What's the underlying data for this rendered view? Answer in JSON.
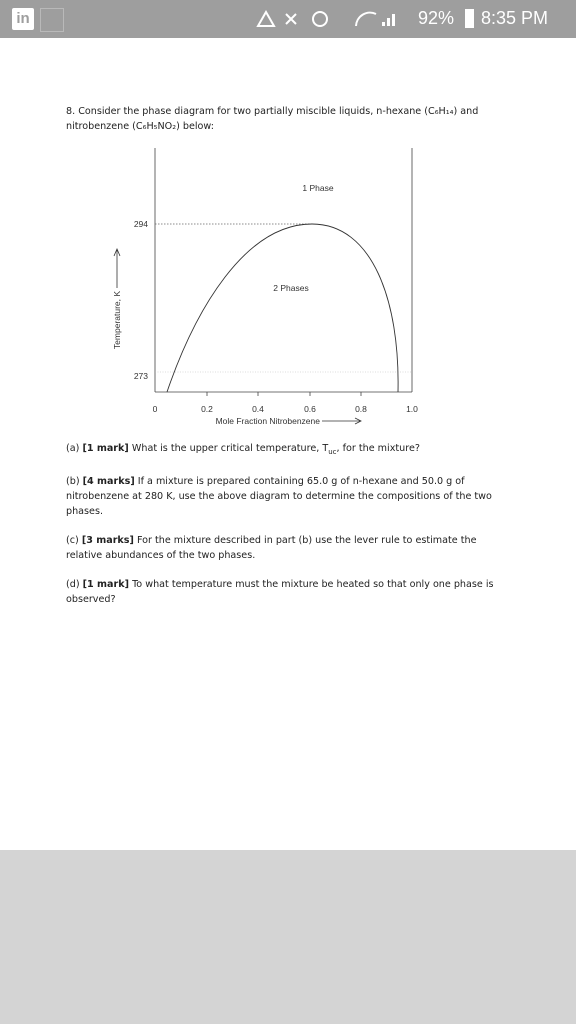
{
  "status_bar": {
    "app": "in",
    "battery": "92%",
    "time": "8:35 PM"
  },
  "question": {
    "number": "8.",
    "line1": "Consider the phase diagram for two partially miscible liquids, n-hexane (C₆H₁₄) and",
    "line2": "nitrobenzene (C₆H₅NO₂) below:"
  },
  "figure": {
    "y_axis_label": "Temperature, K",
    "x_axis_label": "Mole Fraction Nitrobenzene",
    "y_tick_labels": [
      "294",
      "273"
    ],
    "x_tick_labels": [
      "0",
      "0.2",
      "0.4",
      "0.6",
      "0.8",
      "1.0"
    ],
    "region_labels": [
      "1 Phase",
      "2 Phases"
    ]
  },
  "parts": [
    {
      "label": "(a)",
      "marks": "[1 mark]",
      "text": "What is the upper critical temperature, T",
      "sub": "uc",
      "text_after": ", for the mixture?"
    },
    {
      "label": "(b)",
      "marks": "[4 marks]",
      "text": "If a mixture is prepared containing 65.0 g of n-hexane and 50.0 g of nitrobenzene at 280 K, use the above diagram to determine the compositions of the two phases."
    },
    {
      "label": "(c)",
      "marks": "[3 marks]",
      "text": "For the mixture described in part (b) use the lever rule to estimate the relative abundances of the two phases."
    },
    {
      "label": "(d)",
      "marks": "[1 mark]",
      "text": "To what temperature must the mixture be heated so that only one phase is observed?"
    }
  ]
}
